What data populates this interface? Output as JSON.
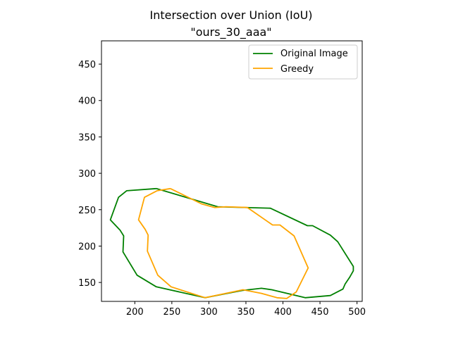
{
  "chart_data": {
    "type": "line",
    "title": "Intersection over Union (IoU)",
    "subtitle": "\"ours_30_aaa\"",
    "xlim": [
      155,
      507
    ],
    "ylim": [
      124,
      482
    ],
    "xticks": [
      200,
      250,
      300,
      350,
      400,
      450,
      500
    ],
    "yticks": [
      150,
      200,
      250,
      300,
      350,
      400,
      450
    ],
    "legend_position": "top-right",
    "grid": false,
    "series": [
      {
        "name": "Original Image",
        "color": "#008000",
        "points": [
          [
            229,
            279
          ],
          [
            189,
            276
          ],
          [
            178,
            267
          ],
          [
            167,
            236
          ],
          [
            180,
            222
          ],
          [
            185,
            214
          ],
          [
            184,
            192
          ],
          [
            203,
            160
          ],
          [
            229,
            144
          ],
          [
            295,
            129
          ],
          [
            345,
            139
          ],
          [
            371,
            142
          ],
          [
            385,
            140
          ],
          [
            430,
            129
          ],
          [
            464,
            132
          ],
          [
            481,
            141
          ],
          [
            484,
            148
          ],
          [
            490,
            157
          ],
          [
            495,
            166
          ],
          [
            495,
            172
          ],
          [
            474,
            206
          ],
          [
            464,
            215
          ],
          [
            440,
            228
          ],
          [
            433,
            228
          ],
          [
            383,
            252
          ],
          [
            312,
            254
          ],
          [
            229,
            279
          ]
        ]
      },
      {
        "name": "Greedy",
        "color": "#ffa500",
        "points": [
          [
            248,
            279
          ],
          [
            230,
            276
          ],
          [
            213,
            267
          ],
          [
            205,
            236
          ],
          [
            214,
            223
          ],
          [
            218,
            215
          ],
          [
            217,
            193
          ],
          [
            231,
            160
          ],
          [
            249,
            144
          ],
          [
            295,
            129
          ],
          [
            346,
            140
          ],
          [
            371,
            135
          ],
          [
            392,
            129
          ],
          [
            405,
            128
          ],
          [
            418,
            137
          ],
          [
            434,
            170
          ],
          [
            415,
            214
          ],
          [
            396,
            229
          ],
          [
            386,
            229
          ],
          [
            352,
            253
          ],
          [
            323,
            254
          ],
          [
            308,
            253
          ],
          [
            290,
            258
          ],
          [
            248,
            279
          ]
        ]
      }
    ]
  }
}
